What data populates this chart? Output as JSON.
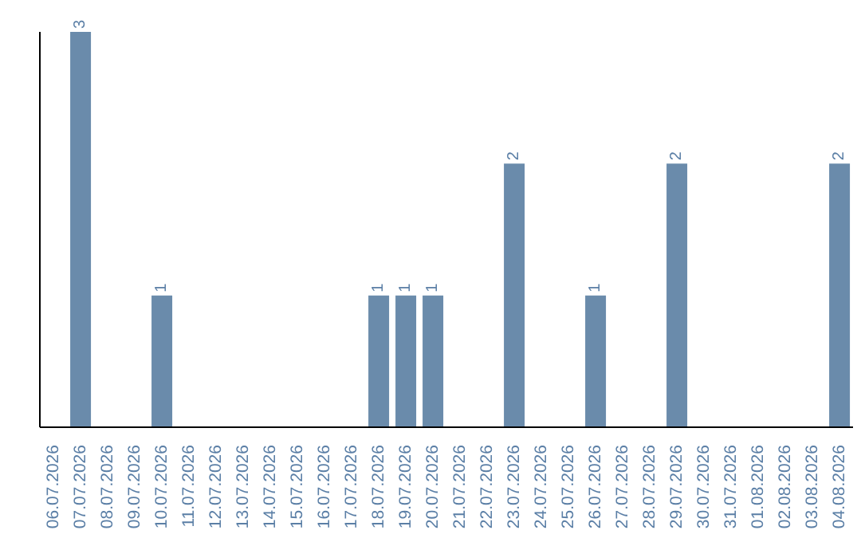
{
  "chart_data": {
    "type": "bar",
    "categories": [
      "06.07.2026",
      "07.07.2026",
      "08.07.2026",
      "09.07.2026",
      "10.07.2026",
      "11.07.2026",
      "12.07.2026",
      "13.07.2026",
      "14.07.2026",
      "15.07.2026",
      "16.07.2026",
      "17.07.2026",
      "18.07.2026",
      "19.07.2026",
      "20.07.2026",
      "21.07.2026",
      "22.07.2026",
      "23.07.2026",
      "24.07.2026",
      "25.07.2026",
      "26.07.2026",
      "27.07.2026",
      "28.07.2026",
      "29.07.2026",
      "30.07.2026",
      "31.07.2026",
      "01.08.2026",
      "02.08.2026",
      "03.08.2026",
      "04.08.2026"
    ],
    "values": [
      0,
      3,
      0,
      0,
      1,
      0,
      0,
      0,
      0,
      0,
      0,
      0,
      1,
      1,
      1,
      0,
      0,
      2,
      0,
      0,
      1,
      0,
      0,
      2,
      0,
      0,
      0,
      0,
      0,
      2
    ],
    "value_labels": [
      null,
      "3",
      null,
      null,
      "1",
      null,
      null,
      null,
      null,
      null,
      null,
      null,
      "1",
      "1",
      "1",
      null,
      null,
      "2",
      null,
      null,
      "1",
      null,
      null,
      "2",
      null,
      null,
      null,
      null,
      null,
      "2"
    ],
    "color": "#6a8bab",
    "grid": false,
    "legend": false
  }
}
